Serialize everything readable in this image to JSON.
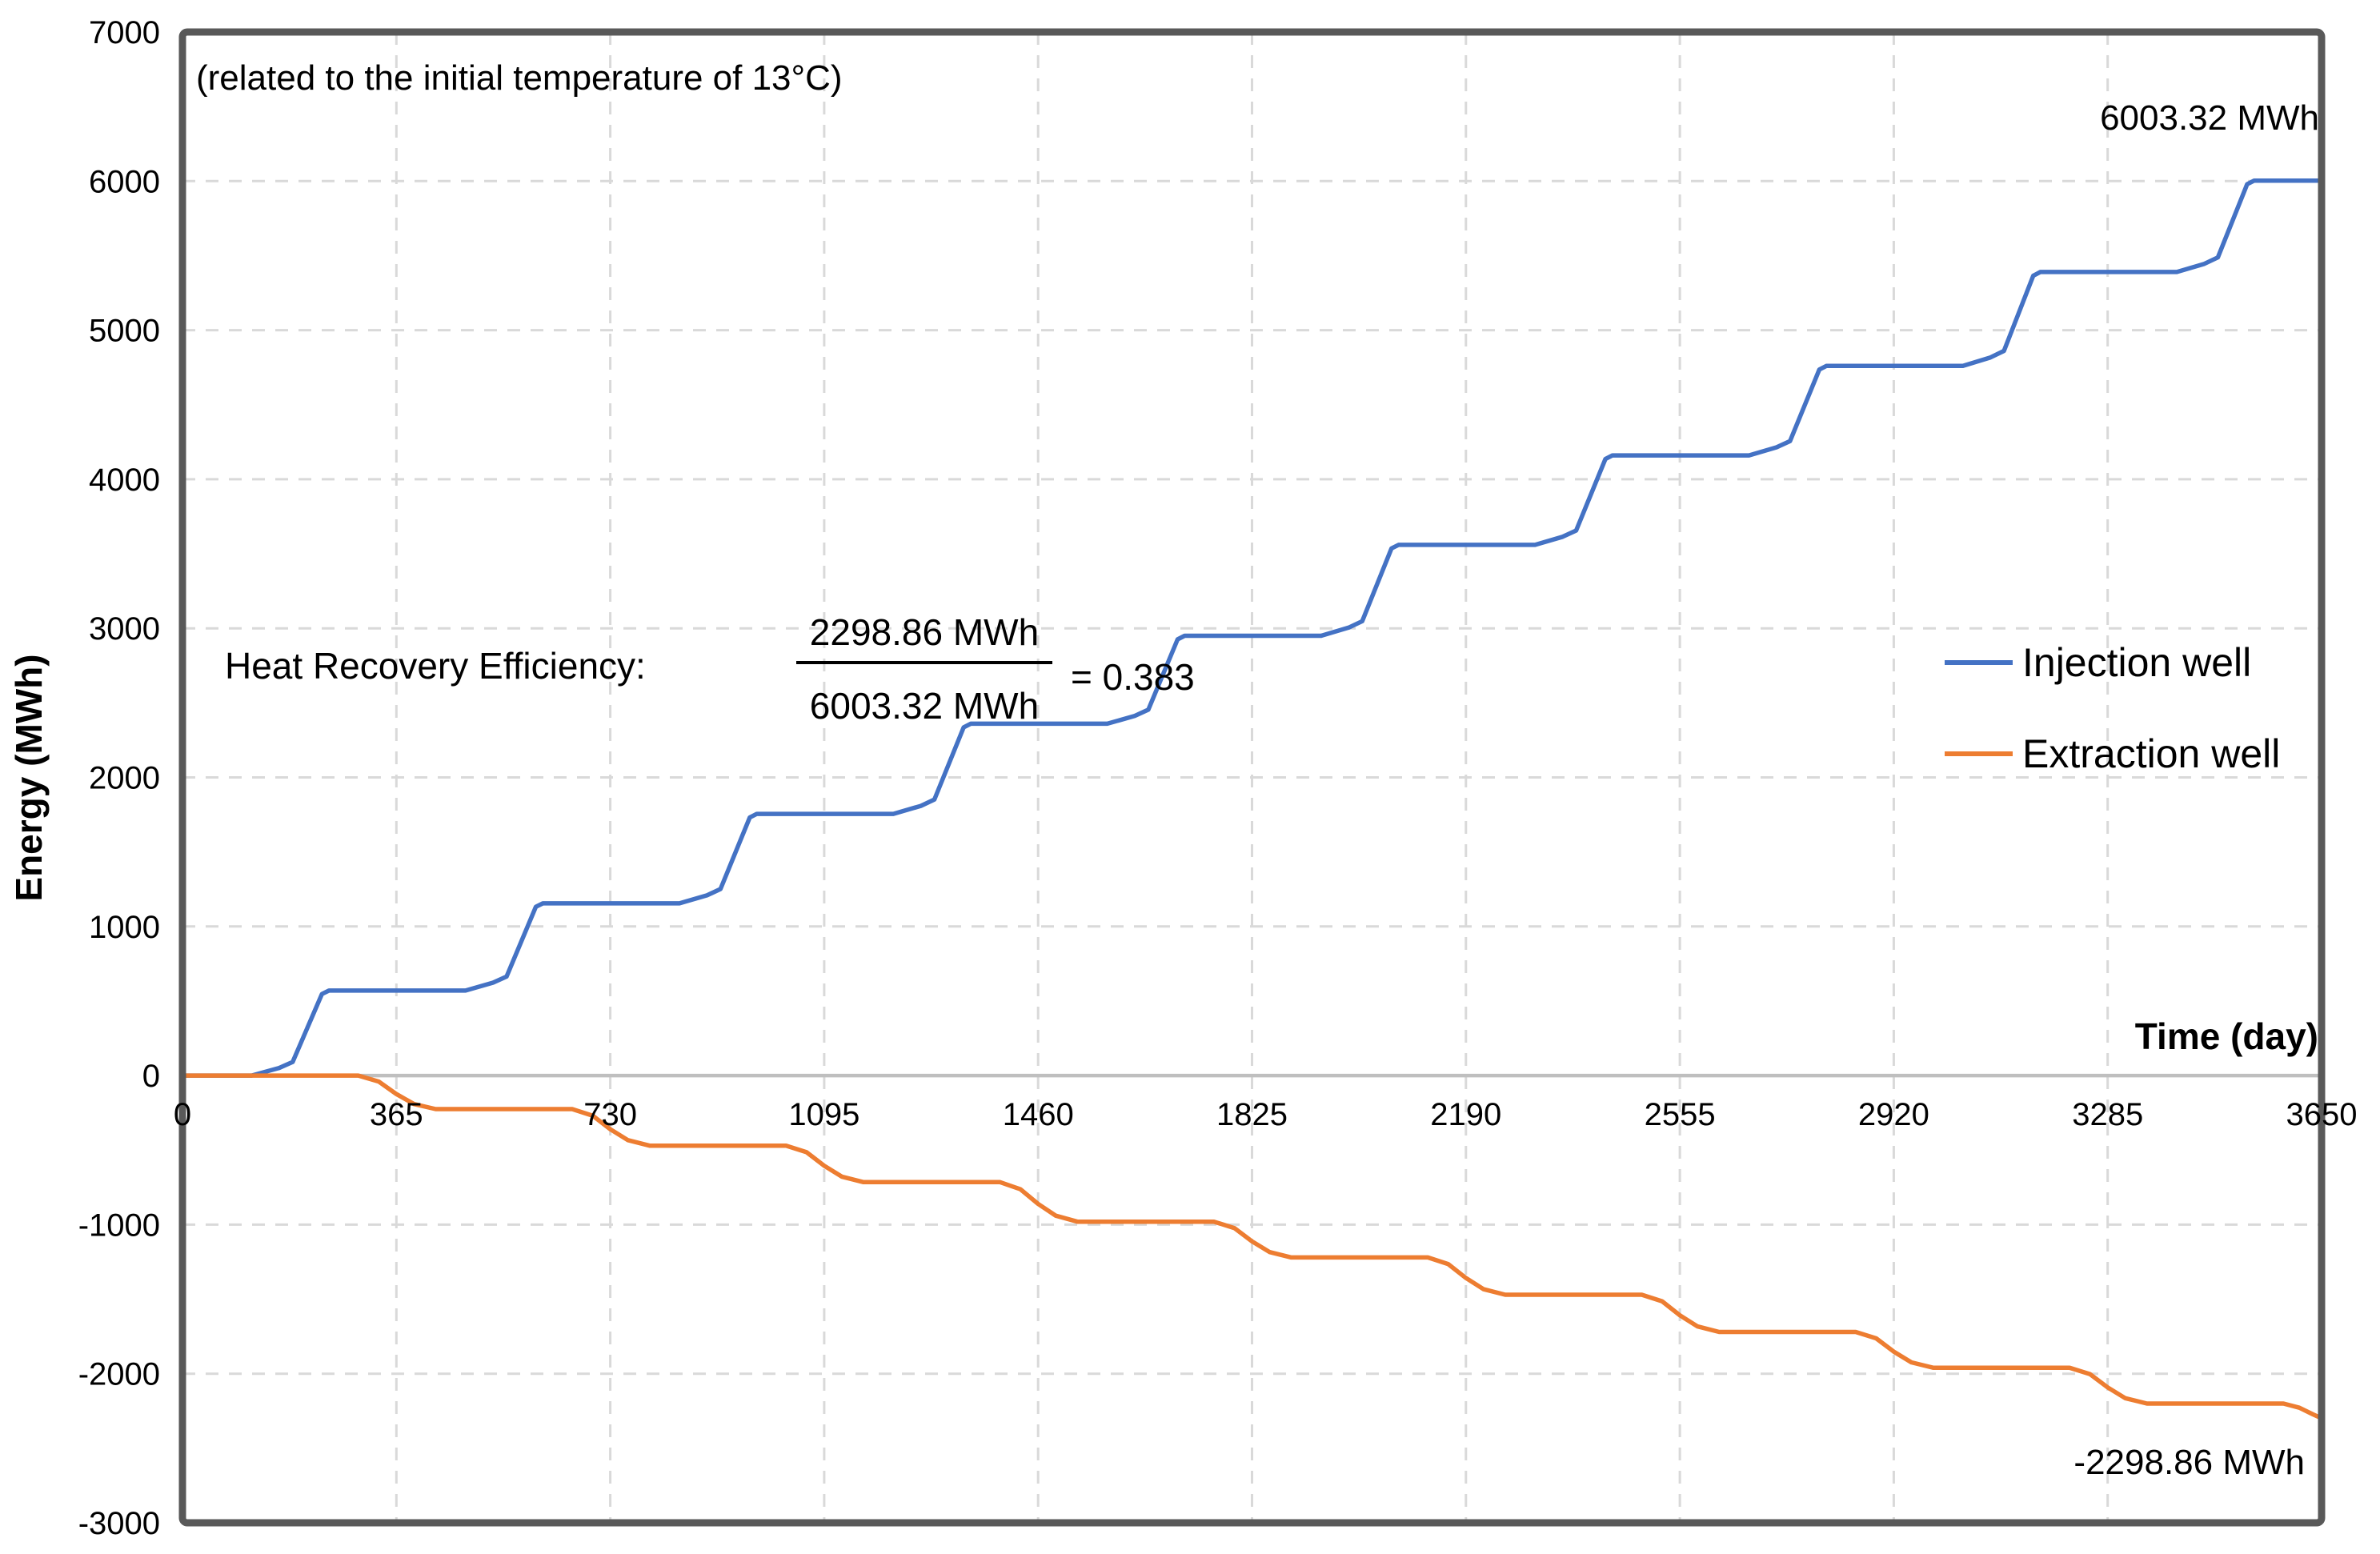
{
  "chart_data": {
    "type": "line",
    "title": "",
    "xlabel": "Time (day)",
    "ylabel": "Energy (MWh)",
    "xlim": [
      0,
      3650
    ],
    "ylim": [
      -3000,
      7000
    ],
    "x_ticks": [
      0,
      365,
      730,
      1095,
      1460,
      1825,
      2190,
      2555,
      2920,
      3285,
      3650
    ],
    "y_ticks": [
      7000,
      6000,
      5000,
      4000,
      3000,
      2000,
      1000,
      0,
      -1000,
      -2000,
      -3000
    ],
    "grid": "dashed",
    "legend_position": "right-middle",
    "series": [
      {
        "name": "Injection well",
        "color": "#4472C4",
        "final_value_mwh": 6003.32,
        "points": [
          [
            0,
            0
          ],
          [
            118,
            0
          ],
          [
            165,
            51
          ],
          [
            188,
            91
          ],
          [
            238,
            547
          ],
          [
            250,
            570
          ],
          [
            483,
            570
          ],
          [
            530,
            623
          ],
          [
            553,
            664
          ],
          [
            603,
            1132
          ],
          [
            615,
            1155
          ],
          [
            848,
            1155
          ],
          [
            895,
            1209
          ],
          [
            918,
            1251
          ],
          [
            968,
            1731
          ],
          [
            980,
            1755
          ],
          [
            1213,
            1755
          ],
          [
            1260,
            1809
          ],
          [
            1283,
            1852
          ],
          [
            1333,
            2336
          ],
          [
            1345,
            2360
          ],
          [
            1578,
            2360
          ],
          [
            1625,
            2413
          ],
          [
            1648,
            2454
          ],
          [
            1698,
            2926
          ],
          [
            1710,
            2950
          ],
          [
            1943,
            2950
          ],
          [
            1990,
            3005
          ],
          [
            2013,
            3048
          ],
          [
            2063,
            3536
          ],
          [
            2075,
            3560
          ],
          [
            2308,
            3560
          ],
          [
            2355,
            3614
          ],
          [
            2378,
            3656
          ],
          [
            2428,
            4136
          ],
          [
            2440,
            4160
          ],
          [
            2673,
            4160
          ],
          [
            2720,
            4214
          ],
          [
            2743,
            4256
          ],
          [
            2793,
            4736
          ],
          [
            2805,
            4760
          ],
          [
            3038,
            4760
          ],
          [
            3085,
            4817
          ],
          [
            3108,
            4861
          ],
          [
            3158,
            5365
          ],
          [
            3170,
            5390
          ],
          [
            3403,
            5390
          ],
          [
            3450,
            5445
          ],
          [
            3473,
            5488
          ],
          [
            3523,
            5979
          ],
          [
            3535,
            6003.32
          ],
          [
            3650,
            6003.32
          ]
        ]
      },
      {
        "name": "Extraction well",
        "color": "#ED7D31",
        "final_value_mwh": -2298.86,
        "points": [
          [
            0,
            0
          ],
          [
            300,
            0
          ],
          [
            335,
            -40
          ],
          [
            365,
            -124
          ],
          [
            395,
            -191
          ],
          [
            432,
            -225
          ],
          [
            665,
            -225
          ],
          [
            700,
            -269
          ],
          [
            730,
            -360
          ],
          [
            760,
            -433
          ],
          [
            797,
            -470
          ],
          [
            1030,
            -470
          ],
          [
            1065,
            -514
          ],
          [
            1095,
            -605
          ],
          [
            1125,
            -678
          ],
          [
            1162,
            -715
          ],
          [
            1395,
            -715
          ],
          [
            1430,
            -763
          ],
          [
            1460,
            -861
          ],
          [
            1490,
            -940
          ],
          [
            1527,
            -980
          ],
          [
            1760,
            -980
          ],
          [
            1795,
            -1023
          ],
          [
            1825,
            -1112
          ],
          [
            1855,
            -1184
          ],
          [
            1892,
            -1220
          ],
          [
            2125,
            -1220
          ],
          [
            2160,
            -1265
          ],
          [
            2190,
            -1358
          ],
          [
            2220,
            -1433
          ],
          [
            2257,
            -1470
          ],
          [
            2490,
            -1470
          ],
          [
            2525,
            -1515
          ],
          [
            2555,
            -1608
          ],
          [
            2585,
            -1683
          ],
          [
            2622,
            -1720
          ],
          [
            2855,
            -1720
          ],
          [
            2890,
            -1763
          ],
          [
            2920,
            -1852
          ],
          [
            2950,
            -1924
          ],
          [
            2987,
            -1960
          ],
          [
            3220,
            -1960
          ],
          [
            3255,
            -2003
          ],
          [
            3285,
            -2092
          ],
          [
            3315,
            -2164
          ],
          [
            3352,
            -2200
          ],
          [
            3585,
            -2200
          ],
          [
            3612,
            -2228
          ],
          [
            3635,
            -2272
          ],
          [
            3650,
            -2298.86
          ]
        ]
      }
    ],
    "annotations": {
      "temperature_note": "(related to the initial temperature of 13°C)",
      "injection_final_label": "6003.32 MWh",
      "extraction_final_label": "-2298.86 MWh",
      "efficiency": {
        "label": "Heat Recovery Efficiency:",
        "numerator": "2298.86 MWh",
        "denominator": "6003.32 MWh",
        "result": "= 0.383"
      }
    },
    "colors": {
      "frame": "#595959",
      "gridline": "#D9D9D9",
      "zero_line": "#BFBFBF",
      "text": "#000000",
      "background": "#FFFFFF"
    }
  }
}
